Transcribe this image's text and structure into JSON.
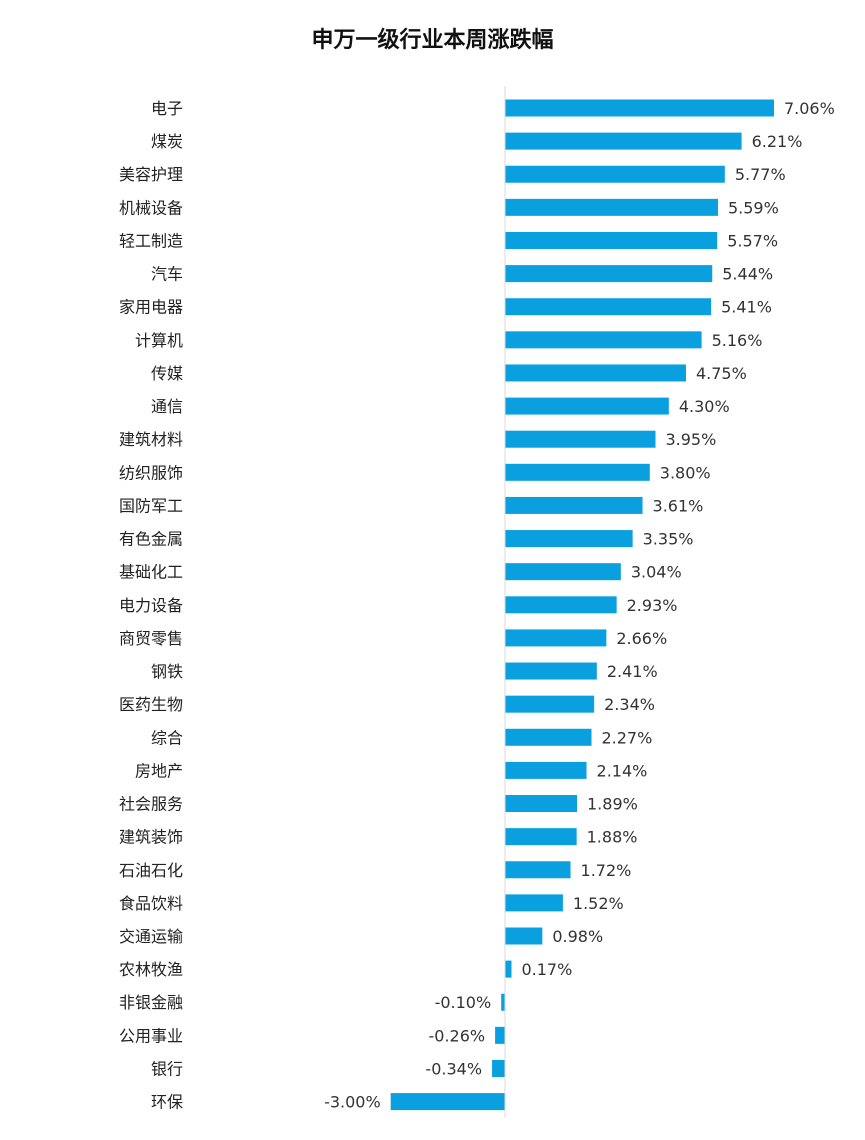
{
  "chart_data": {
    "type": "bar",
    "orientation": "horizontal",
    "title": "申万一级行业本周涨跌幅",
    "xlabel": "",
    "ylabel": "",
    "grid": false,
    "legend": "none",
    "bar_color": "#0aa0e0",
    "axis_color": "#d9d9d9",
    "categories": [
      "电子",
      "煤炭",
      "美容护理",
      "机械设备",
      "轻工制造",
      "汽车",
      "家用电器",
      "计算机",
      "传媒",
      "通信",
      "建筑材料",
      "纺织服饰",
      "国防军工",
      "有色金属",
      "基础化工",
      "电力设备",
      "商贸零售",
      "钢铁",
      "医药生物",
      "综合",
      "房地产",
      "社会服务",
      "建筑装饰",
      "石油石化",
      "食品饮料",
      "交通运输",
      "农林牧渔",
      "非银金融",
      "公用事业",
      "银行",
      "环保"
    ],
    "values": [
      7.06,
      6.21,
      5.77,
      5.59,
      5.57,
      5.44,
      5.41,
      5.16,
      4.75,
      4.3,
      3.95,
      3.8,
      3.61,
      3.35,
      3.04,
      2.93,
      2.66,
      2.41,
      2.34,
      2.27,
      2.14,
      1.89,
      1.88,
      1.72,
      1.52,
      0.98,
      0.17,
      -0.1,
      -0.26,
      -0.34,
      -3.0
    ],
    "value_labels": [
      "7.06%",
      "6.21%",
      "5.77%",
      "5.59%",
      "5.57%",
      "5.44%",
      "5.41%",
      "5.16%",
      "4.75%",
      "4.30%",
      "3.95%",
      "3.80%",
      "3.61%",
      "3.35%",
      "3.04%",
      "2.93%",
      "2.66%",
      "2.41%",
      "2.34%",
      "2.27%",
      "2.14%",
      "1.89%",
      "1.88%",
      "1.72%",
      "1.52%",
      "0.98%",
      "0.17%",
      "-0.10%",
      "-0.26%",
      "-0.34%",
      "-3.00%"
    ]
  }
}
